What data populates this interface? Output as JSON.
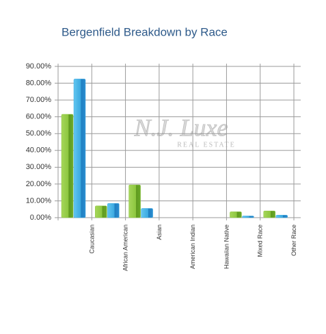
{
  "chart_data": {
    "type": "bar",
    "title": "Bergenfield Breakdown by Race",
    "watermark": "N.J. Luxe",
    "watermark_subtitle": "REAL ESTATE",
    "categories": [
      "Caucasian",
      "African American",
      "Asian",
      "American Indian",
      "Hawaiian Native",
      "Mixed Race",
      "Other Race"
    ],
    "series": [
      {
        "color": "#8cc63f",
        "values": [
          61.5,
          7,
          19.5,
          0,
          0,
          3.5,
          4
        ]
      },
      {
        "color": "#3aa8e0",
        "values": [
          82.5,
          8.5,
          5.5,
          0,
          0,
          1,
          1.5
        ]
      }
    ],
    "ylim": [
      0,
      90
    ],
    "yticks": [
      {
        "value": 0,
        "label": "0.00%"
      },
      {
        "value": 10,
        "label": "10.00%"
      },
      {
        "value": 20,
        "label": "20.00%"
      },
      {
        "value": 30,
        "label": "30.00%"
      },
      {
        "value": 40,
        "label": "40.00%"
      },
      {
        "value": 50,
        "label": "50.00%"
      },
      {
        "value": 60,
        "label": "60.00%"
      },
      {
        "value": 70,
        "label": "70.00%"
      },
      {
        "value": 80,
        "label": "80.00%"
      },
      {
        "value": 90,
        "label": "90.00%"
      }
    ],
    "grid": true
  }
}
